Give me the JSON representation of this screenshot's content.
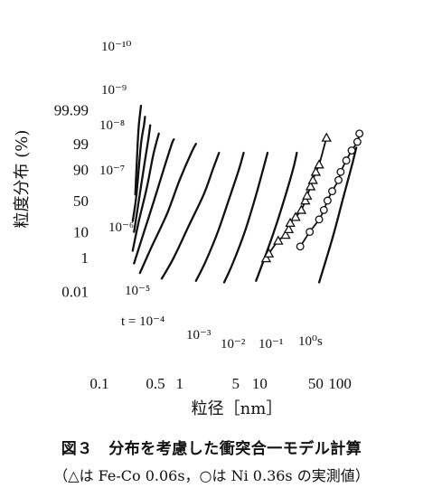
{
  "chart_data": {
    "type": "line",
    "title": "",
    "xlabel": "粒径［nm］",
    "ylabel": "粒度分布 (%)",
    "x_scale": "log",
    "y_scale": "probability (normal)",
    "xlim": [
      0.1,
      200
    ],
    "ylim": [
      0.005,
      99.995
    ],
    "x_ticks": [
      0.1,
      0.5,
      1,
      5,
      10,
      50,
      100
    ],
    "x_tick_labels": [
      "0.1",
      "0.5",
      "1",
      "5",
      "10",
      "50",
      "100"
    ],
    "y_ticks": [
      0.01,
      1,
      10,
      50,
      90,
      99,
      99.99
    ],
    "y_tick_labels": [
      "0.01",
      "1",
      "10",
      "50",
      "90",
      "99",
      "99.99"
    ],
    "curves": [
      {
        "label": "10⁻¹⁰",
        "points": [
          [
            0.28,
            60
          ],
          [
            0.3,
            99.0
          ],
          [
            0.31,
            99.9
          ],
          [
            0.33,
            99.995
          ]
        ]
      },
      {
        "label": "10⁻⁹",
        "points": [
          [
            0.26,
            20
          ],
          [
            0.29,
            60
          ],
          [
            0.33,
            99.0
          ],
          [
            0.36,
            99.9
          ],
          [
            0.37,
            99.97
          ]
        ]
      },
      {
        "label": "10⁻⁸",
        "points": [
          [
            0.27,
            10
          ],
          [
            0.31,
            50
          ],
          [
            0.37,
            95
          ],
          [
            0.41,
            99.5
          ],
          [
            0.43,
            99.9
          ]
        ]
      },
      {
        "label": "10⁻⁷",
        "points": [
          [
            0.26,
            2
          ],
          [
            0.31,
            20
          ],
          [
            0.39,
            70
          ],
          [
            0.47,
            97
          ],
          [
            0.55,
            99.7
          ]
        ]
      },
      {
        "label": "10⁻⁶",
        "points": [
          [
            0.27,
            0.5
          ],
          [
            0.35,
            8
          ],
          [
            0.48,
            50
          ],
          [
            0.65,
            92
          ],
          [
            0.8,
            99.0
          ],
          [
            0.85,
            99.4
          ]
        ]
      },
      {
        "label": "10⁻⁵",
        "points": [
          [
            0.32,
            0.15
          ],
          [
            0.45,
            3
          ],
          [
            0.7,
            30
          ],
          [
            1.0,
            80
          ],
          [
            1.4,
            97.5
          ],
          [
            1.6,
            99.0
          ]
        ]
      },
      {
        "label": "t = 10⁻⁴",
        "points": [
          [
            0.6,
            0.07
          ],
          [
            0.85,
            1
          ],
          [
            1.3,
            15
          ],
          [
            2.0,
            60
          ],
          [
            2.6,
            90
          ],
          [
            3.1,
            97.5
          ]
        ]
      },
      {
        "label": "10⁻³",
        "points": [
          [
            1.6,
            0.05
          ],
          [
            2.1,
            0.6
          ],
          [
            3.0,
            10
          ],
          [
            4.2,
            55
          ],
          [
            5.5,
            90
          ],
          [
            6.3,
            97.5
          ]
        ]
      },
      {
        "label": "10⁻²",
        "points": [
          [
            3.6,
            0.04
          ],
          [
            4.6,
            0.5
          ],
          [
            6.5,
            10
          ],
          [
            8.8,
            55
          ],
          [
            11,
            90
          ],
          [
            12.5,
            97.5
          ]
        ]
      },
      {
        "label": "10⁻¹",
        "points": [
          [
            9.0,
            0.05
          ],
          [
            11,
            0.6
          ],
          [
            15,
            10
          ],
          [
            20,
            50
          ],
          [
            26,
            90
          ],
          [
            29,
            97.5
          ]
        ]
      },
      {
        "label": "10⁰s",
        "points": [
          [
            55,
            0.04
          ],
          [
            65,
            0.5
          ],
          [
            85,
            10
          ],
          [
            110,
            55
          ],
          [
            140,
            92
          ],
          [
            160,
            98.5
          ]
        ]
      }
    ],
    "measured": [
      {
        "marker": "triangle",
        "points": [
          [
            12,
            0.9
          ],
          [
            13,
            1.5
          ],
          [
            17,
            5
          ],
          [
            21,
            8
          ],
          [
            23,
            12
          ],
          [
            24,
            18
          ],
          [
            28,
            25
          ],
          [
            33,
            35
          ],
          [
            37,
            50
          ],
          [
            39,
            58
          ],
          [
            43,
            72
          ],
          [
            46,
            80
          ],
          [
            50,
            88
          ],
          [
            55,
            93
          ],
          [
            68,
            99.5
          ]
        ]
      },
      {
        "marker": "circle",
        "points": [
          [
            32,
            3
          ],
          [
            42,
            10
          ],
          [
            55,
            22
          ],
          [
            63,
            35
          ],
          [
            70,
            50
          ],
          [
            80,
            65
          ],
          [
            96,
            80
          ],
          [
            102,
            88
          ],
          [
            120,
            95
          ],
          [
            140,
            98
          ],
          [
            165,
            99.2
          ],
          [
            175,
            99.7
          ]
        ]
      }
    ]
  },
  "caption": {
    "line1": "図３　分布を考慮した衝突合一モデル計算",
    "line2": "（△は Fe-Co 0.06s，○は Ni 0.36s の実測値）"
  }
}
